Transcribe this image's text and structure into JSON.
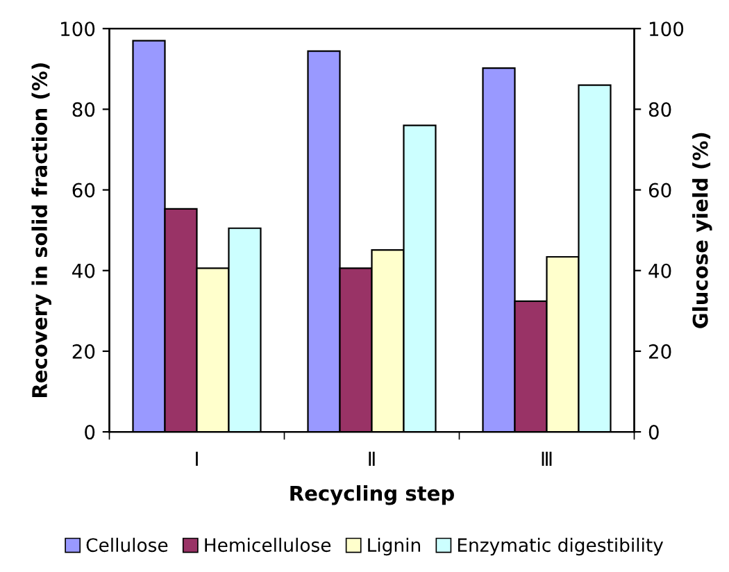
{
  "chart_data": {
    "type": "bar",
    "xlabel": "Recycling step",
    "ylabel": "Recovery in solid fraction (%)",
    "y2label": "Glucose yield (%)",
    "categories": [
      "Ⅰ",
      "Ⅱ",
      "Ⅲ"
    ],
    "series": [
      {
        "name": "Cellulose",
        "color": "#9999ff",
        "values": [
          97,
          94.4,
          90.2
        ]
      },
      {
        "name": "Hemicellulose",
        "color": "#993366",
        "values": [
          55.3,
          40.6,
          32.4
        ]
      },
      {
        "name": "Lignin",
        "color": "#ffffcc",
        "values": [
          40.6,
          45.1,
          43.4
        ]
      },
      {
        "name": "Enzymatic digestibility",
        "color": "#ccffff",
        "values": [
          50.5,
          76,
          86
        ]
      }
    ],
    "ylim": [
      0,
      100
    ],
    "yticks": [
      0,
      20,
      40,
      60,
      80,
      100
    ],
    "y2lim": [
      0,
      100
    ],
    "y2ticks": [
      0,
      20,
      40,
      60,
      80,
      100
    ],
    "grid": false,
    "legend": "bottom"
  }
}
